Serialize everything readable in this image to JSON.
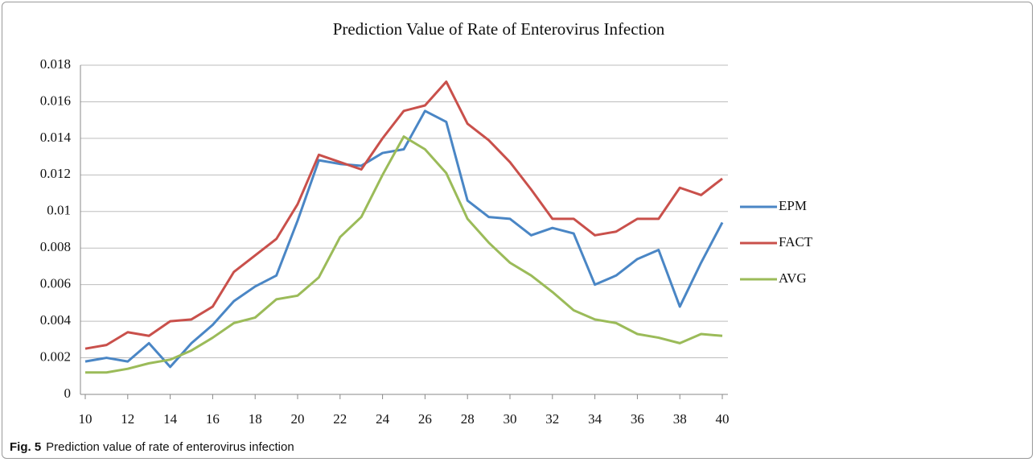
{
  "chart_data": {
    "type": "line",
    "title": "Prediction Value of Rate of Enterovirus Infection",
    "x": [
      10,
      11,
      12,
      13,
      14,
      15,
      16,
      17,
      18,
      19,
      20,
      21,
      22,
      23,
      24,
      25,
      26,
      27,
      28,
      29,
      30,
      31,
      32,
      33,
      34,
      35,
      36,
      37,
      38,
      39,
      40
    ],
    "series": [
      {
        "name": "EPM",
        "color": "#4a86c5",
        "values": [
          0.0018,
          0.002,
          0.0018,
          0.0028,
          0.0015,
          0.0028,
          0.0038,
          0.0051,
          0.0059,
          0.0065,
          0.0095,
          0.0128,
          0.0126,
          0.0125,
          0.0132,
          0.0134,
          0.0155,
          0.0149,
          0.0106,
          0.0097,
          0.0096,
          0.0087,
          0.0091,
          0.0088,
          0.006,
          0.0065,
          0.0074,
          0.0079,
          0.0048,
          0.0072,
          0.0094
        ]
      },
      {
        "name": "FACT",
        "color": "#c9504b",
        "values": [
          0.0025,
          0.0027,
          0.0034,
          0.0032,
          0.004,
          0.0041,
          0.0048,
          0.0067,
          0.0076,
          0.0085,
          0.0104,
          0.0131,
          0.0127,
          0.0123,
          0.014,
          0.0155,
          0.0158,
          0.0171,
          0.0148,
          0.0139,
          0.0127,
          0.0112,
          0.0096,
          0.0096,
          0.0087,
          0.0089,
          0.0096,
          0.0096,
          0.0113,
          0.0109,
          0.0118
        ]
      },
      {
        "name": "AVG",
        "color": "#9bbb59",
        "values": [
          0.0012,
          0.0012,
          0.0014,
          0.0017,
          0.0019,
          0.0024,
          0.0031,
          0.0039,
          0.0042,
          0.0052,
          0.0054,
          0.0064,
          0.0086,
          0.0097,
          0.012,
          0.0141,
          0.0134,
          0.0121,
          0.0096,
          0.0083,
          0.0072,
          0.0065,
          0.0056,
          0.0046,
          0.0041,
          0.0039,
          0.0033,
          0.0031,
          0.0028,
          0.0033,
          0.0032
        ]
      }
    ],
    "xlim": [
      10,
      40
    ],
    "xticks": [
      10,
      12,
      14,
      16,
      18,
      20,
      22,
      24,
      26,
      28,
      30,
      32,
      34,
      36,
      38,
      40
    ],
    "ylim": [
      0,
      0.018
    ],
    "yticks": [
      0,
      0.002,
      0.004,
      0.006,
      0.008,
      0.01,
      0.012,
      0.014,
      0.016,
      0.018
    ],
    "grid": true,
    "legend": "right"
  },
  "caption": {
    "label": "Fig. 5",
    "text": "Prediction value of rate of enterovirus infection"
  }
}
